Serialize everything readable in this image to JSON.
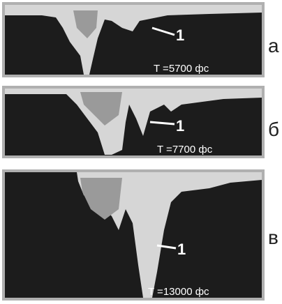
{
  "panels": [
    {
      "letter": "а",
      "marker": "1",
      "time": "T =5700 фс"
    },
    {
      "letter": "б",
      "marker": "1",
      "time": "T =7700 фс"
    },
    {
      "letter": "в",
      "marker": "1",
      "time": "T =13000 фс"
    }
  ]
}
